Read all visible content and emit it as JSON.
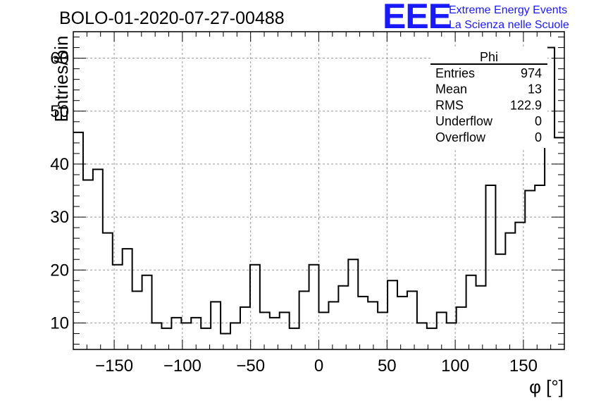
{
  "header": {
    "title": "BOLO-01-2020-07-27-00488",
    "logo_text": "EEE",
    "logo_line1": "Extreme Energy Events",
    "logo_line2": "La Scienza nelle Scuole"
  },
  "stats": {
    "name": "Phi",
    "rows": [
      {
        "label": "Entries",
        "value": "974"
      },
      {
        "label": "Mean",
        "value": "13"
      },
      {
        "label": "RMS",
        "value": "122.9"
      },
      {
        "label": "Underflow",
        "value": "0"
      },
      {
        "label": "Overflow",
        "value": "0"
      }
    ]
  },
  "chart_data": {
    "type": "histogram",
    "xlabel": "φ [°]",
    "ylabel": "Entries/bin",
    "xlim": [
      -180,
      180
    ],
    "ylim": [
      5,
      65
    ],
    "grid": true,
    "line_color": "#000000",
    "xticks": [
      -150,
      -100,
      -50,
      0,
      50,
      100,
      150
    ],
    "yticks": [
      10,
      20,
      30,
      40,
      50,
      60
    ],
    "bin_width": 7.2,
    "bin_start": -180,
    "values": [
      46,
      37,
      39,
      27,
      21,
      24,
      16,
      19,
      10,
      9,
      11,
      10,
      11,
      9,
      14,
      8,
      10,
      13,
      21,
      12,
      11,
      12,
      9,
      16,
      21,
      12,
      14,
      17,
      22,
      15,
      14,
      12,
      18,
      15,
      16,
      10,
      9,
      12,
      10,
      13,
      19,
      17,
      36,
      23,
      27,
      29,
      35,
      36,
      62,
      45
    ]
  }
}
